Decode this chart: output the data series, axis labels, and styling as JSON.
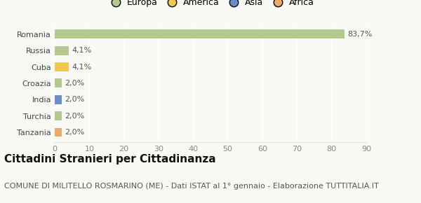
{
  "categories": [
    "Romania",
    "Russia",
    "Cuba",
    "Croazia",
    "India",
    "Turchia",
    "Tanzania"
  ],
  "values": [
    83.7,
    4.1,
    4.1,
    2.0,
    2.0,
    2.0,
    2.0
  ],
  "bar_colors": [
    "#b5c98e",
    "#b5c98e",
    "#f0c84a",
    "#b5c98e",
    "#6a8fc8",
    "#b5c98e",
    "#f0a868"
  ],
  "labels": [
    "83,7%",
    "4,1%",
    "4,1%",
    "2,0%",
    "2,0%",
    "2,0%",
    "2,0%"
  ],
  "xlim": [
    0,
    90
  ],
  "xticks": [
    0,
    10,
    20,
    30,
    40,
    50,
    60,
    70,
    80,
    90
  ],
  "legend": [
    {
      "label": "Europa",
      "color": "#b5c98e"
    },
    {
      "label": "America",
      "color": "#f0c84a"
    },
    {
      "label": "Asia",
      "color": "#6a8fc8"
    },
    {
      "label": "Africa",
      "color": "#f0a868"
    }
  ],
  "title": "Cittadini Stranieri per Cittadinanza",
  "subtitle": "COMUNE DI MILITELLO ROSMARINO (ME) - Dati ISTAT al 1° gennaio - Elaborazione TUTTITALIA.IT",
  "bg_color": "#f9f9f6",
  "grid_color": "#ffffff",
  "title_fontsize": 11,
  "subtitle_fontsize": 8,
  "label_fontsize": 8,
  "tick_fontsize": 8,
  "legend_fontsize": 9
}
